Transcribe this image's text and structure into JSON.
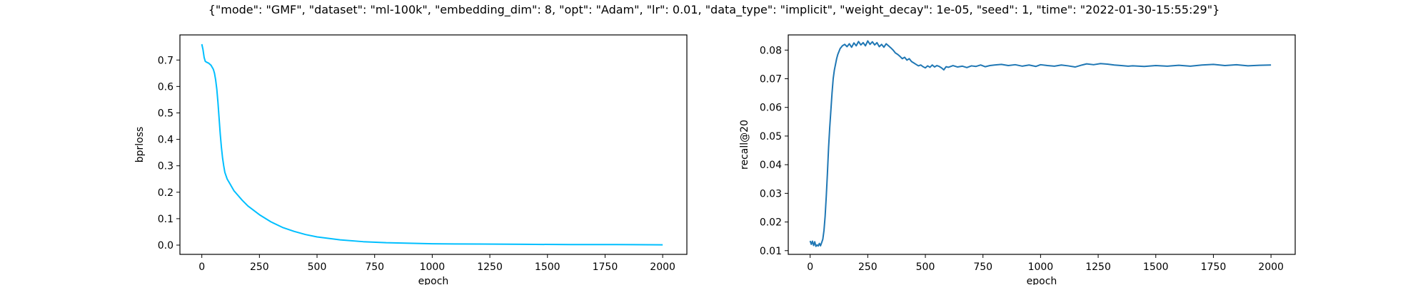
{
  "figure_title": "{\"mode\": \"GMF\", \"dataset\": \"ml-100k\", \"embedding_dim\": 8, \"opt\": \"Adam\", \"lr\": 0.01, \"data_type\": \"implicit\", \"weight_decay\": 1e-05, \"seed\": 1, \"time\": \"2022-01-30-15:55:29\"}",
  "chart_data": [
    {
      "type": "line",
      "xlabel": "epoch",
      "ylabel": "bprloss",
      "xlim": [
        -95,
        2105
      ],
      "ylim": [
        -0.035,
        0.795
      ],
      "xticks": [
        0,
        250,
        500,
        750,
        1000,
        1250,
        1500,
        1750,
        2000
      ],
      "yticks": [
        0.0,
        0.1,
        0.2,
        0.3,
        0.4,
        0.5,
        0.6,
        0.7
      ],
      "ytick_labels": [
        "0.0",
        "0.1",
        "0.2",
        "0.3",
        "0.4",
        "0.5",
        "0.6",
        "0.7"
      ],
      "line_color": "#00bfff",
      "grid": false,
      "series": [
        {
          "x": [
            0,
            5,
            10,
            15,
            20,
            25,
            30,
            40,
            50,
            55,
            60,
            65,
            70,
            75,
            80,
            85,
            90,
            95,
            100,
            110,
            120,
            130,
            140,
            150,
            175,
            200,
            250,
            300,
            350,
            400,
            450,
            500,
            600,
            700,
            800,
            900,
            1000,
            1200,
            1400,
            1600,
            1800,
            2000
          ],
          "y": [
            0.76,
            0.74,
            0.71,
            0.695,
            0.692,
            0.69,
            0.688,
            0.68,
            0.665,
            0.65,
            0.625,
            0.59,
            0.54,
            0.48,
            0.42,
            0.37,
            0.33,
            0.3,
            0.275,
            0.25,
            0.235,
            0.22,
            0.205,
            0.195,
            0.17,
            0.148,
            0.115,
            0.088,
            0.067,
            0.052,
            0.04,
            0.031,
            0.02,
            0.013,
            0.009,
            0.007,
            0.005,
            0.004,
            0.003,
            0.002,
            0.002,
            0.001
          ]
        }
      ]
    },
    {
      "type": "line",
      "xlabel": "epoch",
      "ylabel": "recall@20",
      "xlim": [
        -95,
        2105
      ],
      "ylim": [
        0.0087,
        0.0853
      ],
      "xticks": [
        0,
        250,
        500,
        750,
        1000,
        1250,
        1500,
        1750,
        2000
      ],
      "yticks": [
        0.01,
        0.02,
        0.03,
        0.04,
        0.05,
        0.06,
        0.07,
        0.08
      ],
      "ytick_labels": [
        "0.01",
        "0.02",
        "0.03",
        "0.04",
        "0.05",
        "0.06",
        "0.07",
        "0.08"
      ],
      "line_color": "#1f77b4",
      "grid": false,
      "series": [
        {
          "x": [
            0,
            5,
            10,
            15,
            20,
            25,
            30,
            35,
            40,
            45,
            50,
            55,
            60,
            65,
            70,
            75,
            80,
            85,
            90,
            95,
            100,
            105,
            110,
            115,
            120,
            125,
            130,
            140,
            150,
            160,
            170,
            180,
            190,
            200,
            210,
            220,
            230,
            240,
            250,
            260,
            270,
            280,
            290,
            300,
            310,
            320,
            330,
            340,
            350,
            360,
            370,
            380,
            390,
            400,
            410,
            420,
            430,
            440,
            450,
            460,
            470,
            480,
            490,
            500,
            510,
            520,
            530,
            540,
            550,
            560,
            570,
            580,
            590,
            600,
            620,
            640,
            660,
            680,
            700,
            720,
            740,
            760,
            780,
            800,
            830,
            860,
            890,
            920,
            950,
            980,
            1000,
            1030,
            1060,
            1090,
            1120,
            1150,
            1180,
            1200,
            1230,
            1260,
            1290,
            1320,
            1350,
            1380,
            1400,
            1450,
            1500,
            1550,
            1600,
            1650,
            1700,
            1750,
            1800,
            1850,
            1900,
            1950,
            2000
          ],
          "y": [
            0.0134,
            0.0122,
            0.0133,
            0.0118,
            0.0131,
            0.0115,
            0.012,
            0.0116,
            0.0125,
            0.0117,
            0.0128,
            0.014,
            0.017,
            0.022,
            0.029,
            0.037,
            0.046,
            0.053,
            0.059,
            0.065,
            0.07,
            0.073,
            0.075,
            0.077,
            0.0785,
            0.0795,
            0.0805,
            0.0815,
            0.082,
            0.0812,
            0.0822,
            0.081,
            0.0825,
            0.0815,
            0.083,
            0.0818,
            0.0826,
            0.0815,
            0.0832,
            0.082,
            0.0829,
            0.0818,
            0.0826,
            0.0812,
            0.082,
            0.081,
            0.0822,
            0.0815,
            0.0808,
            0.08,
            0.079,
            0.0785,
            0.0778,
            0.077,
            0.0775,
            0.0765,
            0.077,
            0.076,
            0.0755,
            0.075,
            0.0745,
            0.0748,
            0.0742,
            0.0738,
            0.0745,
            0.074,
            0.0748,
            0.0741,
            0.0746,
            0.0743,
            0.0738,
            0.0731,
            0.0742,
            0.074,
            0.0746,
            0.0741,
            0.0744,
            0.0739,
            0.0745,
            0.0743,
            0.0748,
            0.0742,
            0.0746,
            0.0748,
            0.075,
            0.0746,
            0.0749,
            0.0744,
            0.0748,
            0.0743,
            0.0749,
            0.0746,
            0.0744,
            0.0748,
            0.0745,
            0.0741,
            0.0748,
            0.0752,
            0.0749,
            0.0753,
            0.0751,
            0.0748,
            0.0746,
            0.0744,
            0.0745,
            0.0743,
            0.0746,
            0.0744,
            0.0747,
            0.0744,
            0.0748,
            0.075,
            0.0746,
            0.0749,
            0.0745,
            0.0747,
            0.0748
          ]
        }
      ]
    }
  ]
}
